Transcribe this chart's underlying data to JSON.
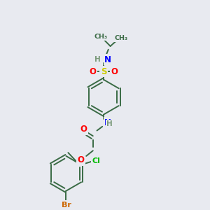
{
  "background_color": "#e8eaf0",
  "bond_color": "#3a6b45",
  "atom_colors": {
    "N": "#0000ff",
    "O": "#ff0000",
    "S": "#cccc00",
    "Cl": "#00bb00",
    "Br": "#cc6600",
    "H": "#7a9a7a",
    "C": "#3a6b45"
  },
  "fig_size": [
    3.0,
    3.0
  ],
  "dpi": 100
}
